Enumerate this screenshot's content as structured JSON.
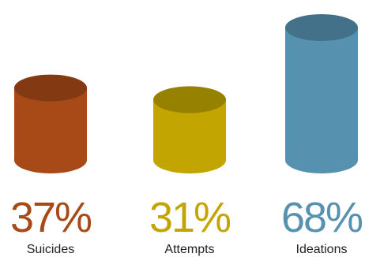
{
  "chart_data": {
    "type": "bar",
    "style": "3d-cylinder",
    "categories": [
      "Suicides",
      "Attempts",
      "Ideations"
    ],
    "values": [
      37,
      31,
      68
    ],
    "value_labels": [
      "37%",
      "31%",
      "68%"
    ],
    "colors": [
      "#a84a17",
      "#c2a500",
      "#5691b0"
    ],
    "title": "",
    "xlabel": "",
    "ylabel": "",
    "ylim": [
      0,
      68
    ],
    "grid": false
  }
}
